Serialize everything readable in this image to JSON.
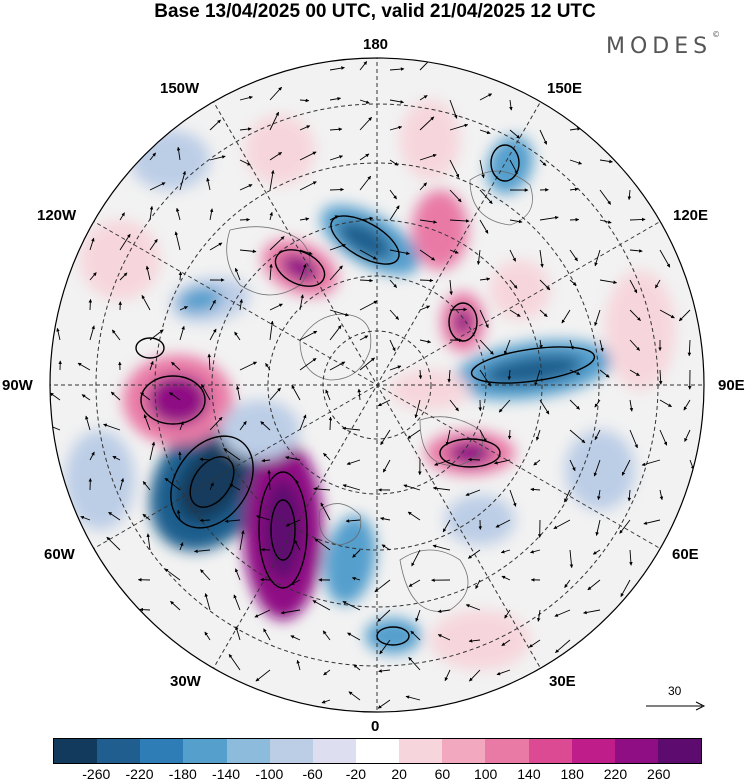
{
  "title": "Base 13/04/2025 00 UTC, valid 21/04/2025 12 UTC",
  "brand": "MODES",
  "brand_mark": "©",
  "longitude_labels": {
    "top": "180",
    "top_left": "150W",
    "top_right": "150E",
    "upper_left": "120W",
    "upper_right": "120E",
    "left": "90W",
    "right": "90E",
    "lower_left": "60W",
    "lower_right": "60E",
    "bottom_left": "30W",
    "bottom_right": "30E",
    "bottom": "0"
  },
  "reference_vector": "30",
  "colorbar": {
    "ticks": [
      "-260",
      "-220",
      "-180",
      "-140",
      "-100",
      "-60",
      "-20",
      "20",
      "60",
      "100",
      "140",
      "180",
      "220",
      "260"
    ],
    "colors": [
      "#123a5c",
      "#1f5e8e",
      "#2f7db7",
      "#559fcd",
      "#8cbbdc",
      "#bccde6",
      "#dddff0",
      "#ffffff",
      "#f6d6dc",
      "#f2a9bf",
      "#e97aa6",
      "#dc4a94",
      "#bf1e8a",
      "#8f0e84",
      "#5e0b6f"
    ]
  },
  "map_legend": {
    "anomaly_colors": {
      "neg_strong": "#1f5e8e",
      "neg_mid": "#559fcd",
      "neg_weak": "#bccde6",
      "pos_weak": "#f6d6dc",
      "pos_mid": "#e97aa6",
      "pos_strong": "#8f0e84"
    }
  }
}
